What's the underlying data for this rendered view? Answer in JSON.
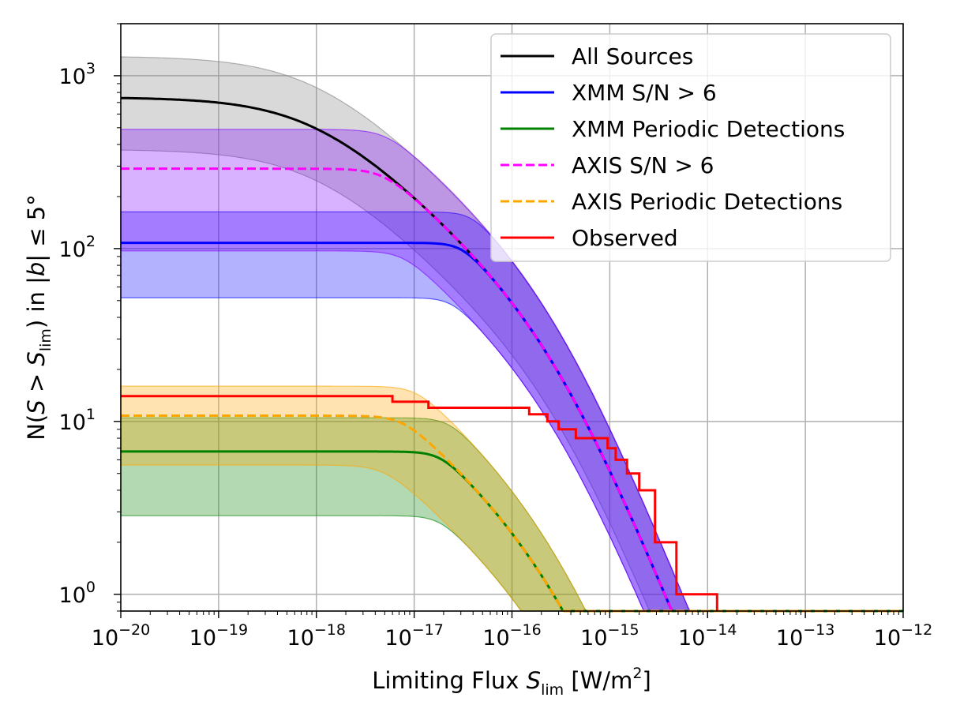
{
  "chart_data": {
    "type": "line",
    "title": "",
    "xlabel": "Limiting Flux S_lim [W/m^2]",
    "ylabel": "N(S > S_lim) in |b| ≤ 5°",
    "x_scale": "log",
    "y_scale": "log",
    "xlim": [
      1e-20,
      1e-12
    ],
    "ylim": [
      0.8,
      2000
    ],
    "grid": true,
    "legend_position": "top-right",
    "x_ticks": [
      {
        "base": "10",
        "exp": "−20"
      },
      {
        "base": "10",
        "exp": "−19"
      },
      {
        "base": "10",
        "exp": "−18"
      },
      {
        "base": "10",
        "exp": "−17"
      },
      {
        "base": "10",
        "exp": "−16"
      },
      {
        "base": "10",
        "exp": "−15"
      },
      {
        "base": "10",
        "exp": "−14"
      },
      {
        "base": "10",
        "exp": "−13"
      },
      {
        "base": "10",
        "exp": "−12"
      }
    ],
    "y_ticks": [
      {
        "value": 1,
        "base": "10",
        "exp": "0"
      },
      {
        "value": 10,
        "base": "10",
        "exp": "1"
      },
      {
        "value": 100,
        "base": "10",
        "exp": "2"
      },
      {
        "value": 1000,
        "base": "10",
        "exp": "3"
      }
    ],
    "axis_labels": {
      "x_main": "Limiting Flux ",
      "x_sym": "S",
      "x_sub": "lim",
      "x_unit_open": " [W/m",
      "x_unit_exp": "2",
      "x_unit_close": "]",
      "y_pre": "N(",
      "y_s1": "S",
      "y_gt": " > ",
      "y_s2": "S",
      "y_sub": "lim",
      "y_mid": ") in |",
      "y_b": "b",
      "y_post": "| ≤ 5°"
    },
    "series": [
      {
        "name": "All Sources",
        "color": "#000000",
        "dash": "solid",
        "kind": "model",
        "S0": 1e-18,
        "N0": 750,
        "NB": 1.0,
        "k": 1,
        "band_lo_factor": 0.5,
        "band_hi_factor": 1.73,
        "band_color": "#808080"
      },
      {
        "name": "XMM S/N > 6",
        "color": "#0000ff",
        "dash": "solid",
        "kind": "model",
        "S0": 1e-18,
        "N0": 750,
        "NB": 1.0,
        "k": 1,
        "plateau": 108,
        "band_lo": 52,
        "band_hi": 163,
        "band_color": "#0000ff"
      },
      {
        "name": "XMM Periodic Detections",
        "color": "#008000",
        "dash": "solid",
        "kind": "model",
        "S0": 1e-18,
        "N0": 750,
        "NB": 1.0,
        "k": 1,
        "plateau": 6.7,
        "scale": 0.0465,
        "band_lo": 2.85,
        "band_hi": 10.5,
        "band_color": "#008000"
      },
      {
        "name": "AXIS S/N > 6",
        "color": "#ff00ff",
        "dash": "dashed",
        "kind": "model",
        "S0": 1e-18,
        "N0": 750,
        "NB": 1.0,
        "k": 1,
        "plateau": 290,
        "band_lo": 97,
        "band_hi": 490,
        "band_color": "#8000ff"
      },
      {
        "name": "AXIS Periodic Detections",
        "color": "#ffa500",
        "dash": "dashed",
        "kind": "model",
        "S0": 1e-18,
        "N0": 750,
        "NB": 1.0,
        "k": 1,
        "plateau": 10.8,
        "scale": 0.0465,
        "band_lo": 5.6,
        "band_hi": 16.0,
        "band_color": "#ffa500"
      },
      {
        "name": "Observed",
        "color": "#ff0000",
        "dash": "solid",
        "kind": "step",
        "x": [
          1e-20,
          6e-18,
          6e-18,
          1.4e-17,
          1.4e-17,
          1.5e-16,
          1.5e-16,
          2.3e-16,
          2.3e-16,
          3e-16,
          3e-16,
          4.5e-16,
          4.5e-16,
          9.5e-16,
          9.5e-16,
          1.15e-15,
          1.15e-15,
          1.5e-15,
          1.5e-15,
          2e-15,
          2e-15,
          2.9e-15,
          2.9e-15,
          4.8e-15,
          4.8e-15,
          1.25e-14,
          1.25e-14
        ],
        "y": [
          14,
          14,
          13,
          13,
          12,
          12,
          11,
          11,
          10,
          10,
          9,
          9,
          8,
          8,
          7,
          7,
          6,
          6,
          5,
          5,
          4,
          4,
          2,
          2,
          1,
          1,
          0.8
        ]
      }
    ]
  }
}
